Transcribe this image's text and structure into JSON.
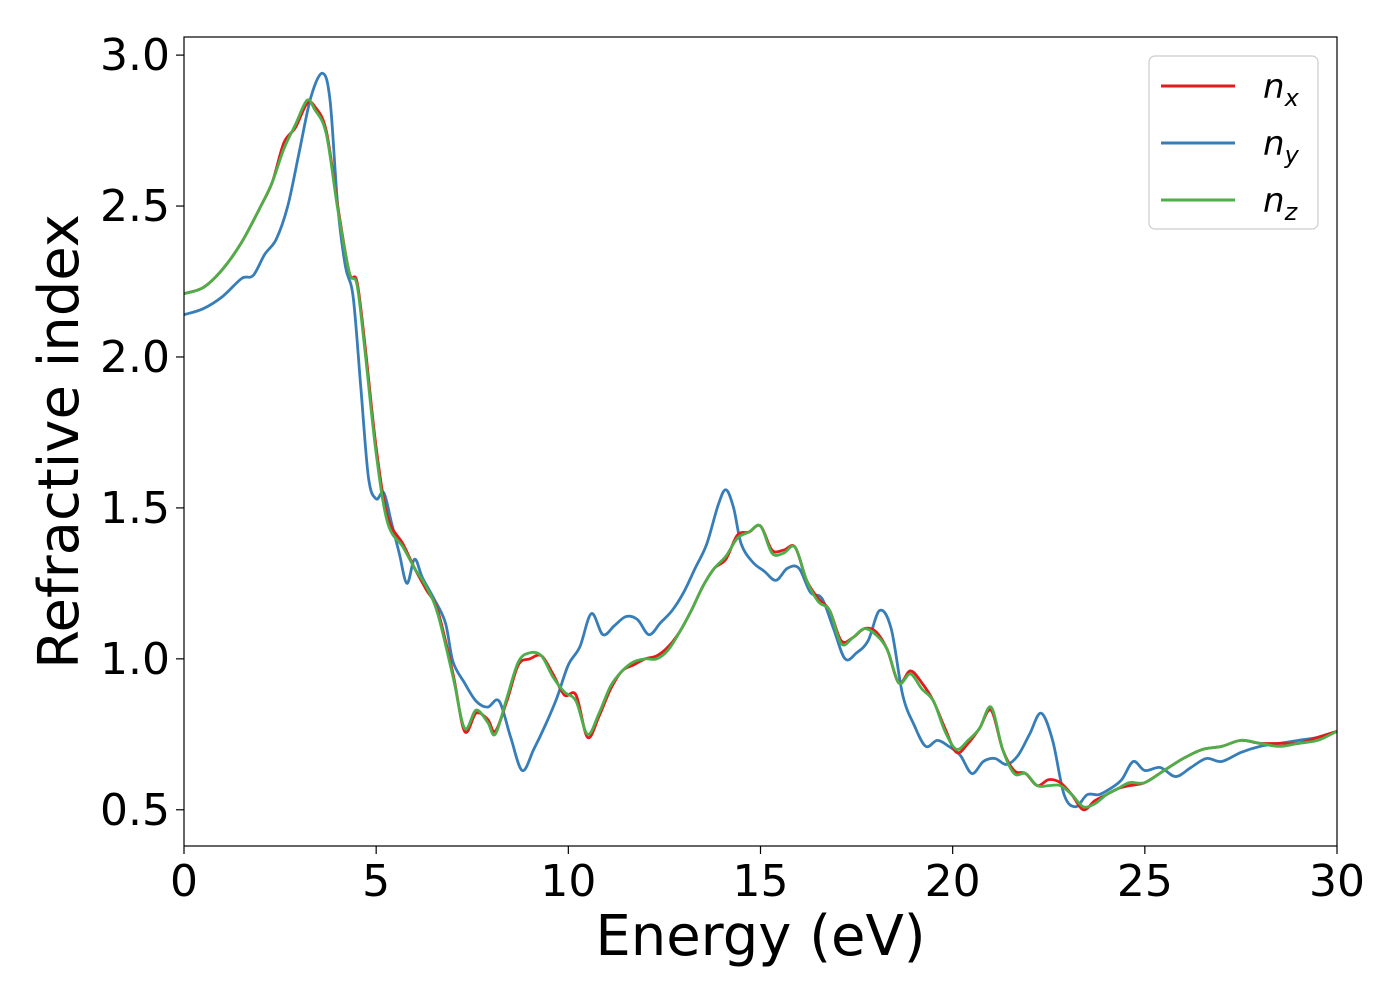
{
  "chart_data": {
    "type": "line",
    "xlabel": "Energy (eV)",
    "ylabel": "Refractive index",
    "xlim": [
      0,
      30
    ],
    "ylim": [
      0.38,
      3.06
    ],
    "xticks": [
      0,
      5,
      10,
      15,
      20,
      25,
      30
    ],
    "yticks": [
      0.5,
      1.0,
      1.5,
      2.0,
      2.5,
      3.0
    ],
    "xtick_labels": [
      "0",
      "5",
      "10",
      "15",
      "20",
      "25",
      "30"
    ],
    "ytick_labels": [
      "0.5",
      "1.0",
      "1.5",
      "2.0",
      "2.5",
      "3.0"
    ],
    "grid": false,
    "legend_position": "top-right",
    "series": [
      {
        "name": "n_x",
        "label_main": "n",
        "label_sub": "x",
        "color": "#e41a1c",
        "x": [
          0,
          0.5,
          1,
          1.5,
          2,
          2.3,
          2.6,
          2.9,
          3.2,
          3.4,
          3.7,
          4.0,
          4.3,
          4.5,
          4.7,
          5.0,
          5.3,
          5.7,
          6.0,
          6.3,
          6.6,
          7.0,
          7.3,
          7.6,
          7.9,
          8.1,
          8.4,
          8.7,
          9.0,
          9.3,
          9.6,
          9.9,
          10.2,
          10.5,
          10.8,
          11.1,
          11.4,
          11.7,
          12.0,
          12.3,
          12.6,
          12.9,
          13.2,
          13.5,
          13.8,
          14.1,
          14.4,
          14.7,
          15.0,
          15.3,
          15.6,
          15.9,
          16.2,
          16.5,
          16.8,
          17.1,
          17.4,
          17.7,
          18.0,
          18.3,
          18.6,
          18.9,
          19.2,
          19.5,
          19.8,
          20.1,
          20.4,
          20.7,
          21.0,
          21.3,
          21.6,
          21.9,
          22.2,
          22.5,
          22.8,
          23.1,
          23.4,
          23.7,
          24.0,
          24.3,
          24.6,
          25.0,
          25.5,
          26.0,
          26.5,
          27.0,
          27.5,
          28.0,
          28.5,
          29.0,
          29.5,
          30.0
        ],
        "y": [
          2.21,
          2.23,
          2.29,
          2.38,
          2.5,
          2.58,
          2.71,
          2.76,
          2.84,
          2.83,
          2.75,
          2.5,
          2.28,
          2.25,
          2.05,
          1.7,
          1.47,
          1.38,
          1.3,
          1.23,
          1.16,
          0.95,
          0.76,
          0.82,
          0.8,
          0.76,
          0.86,
          0.98,
          1.0,
          1.01,
          0.95,
          0.88,
          0.88,
          0.74,
          0.81,
          0.9,
          0.96,
          0.98,
          1.0,
          1.01,
          1.04,
          1.09,
          1.16,
          1.24,
          1.3,
          1.33,
          1.41,
          1.42,
          1.44,
          1.36,
          1.36,
          1.37,
          1.26,
          1.2,
          1.16,
          1.06,
          1.07,
          1.1,
          1.09,
          1.03,
          0.92,
          0.96,
          0.92,
          0.86,
          0.77,
          0.69,
          0.72,
          0.77,
          0.83,
          0.7,
          0.63,
          0.62,
          0.58,
          0.6,
          0.59,
          0.55,
          0.5,
          0.53,
          0.55,
          0.57,
          0.58,
          0.59,
          0.63,
          0.67,
          0.7,
          0.71,
          0.73,
          0.72,
          0.72,
          0.72,
          0.74,
          0.76
        ]
      },
      {
        "name": "n_y",
        "label_main": "n",
        "label_sub": "y",
        "color": "#377eb8",
        "x": [
          0,
          0.5,
          1,
          1.5,
          1.8,
          2.1,
          2.4,
          2.7,
          3.0,
          3.3,
          3.6,
          3.8,
          4.0,
          4.2,
          4.4,
          4.6,
          4.8,
          5.0,
          5.2,
          5.4,
          5.6,
          5.8,
          6.0,
          6.2,
          6.5,
          6.8,
          7.0,
          7.3,
          7.6,
          7.9,
          8.2,
          8.5,
          8.8,
          9.1,
          9.4,
          9.7,
          10.0,
          10.3,
          10.6,
          10.9,
          11.2,
          11.5,
          11.8,
          12.1,
          12.4,
          12.7,
          13.0,
          13.3,
          13.6,
          13.9,
          14.1,
          14.3,
          14.5,
          14.8,
          15.1,
          15.4,
          15.7,
          16.0,
          16.3,
          16.6,
          16.9,
          17.2,
          17.5,
          17.8,
          18.1,
          18.4,
          18.7,
          19.0,
          19.3,
          19.6,
          19.9,
          20.2,
          20.5,
          20.8,
          21.1,
          21.4,
          21.7,
          22.0,
          22.3,
          22.6,
          22.9,
          23.2,
          23.5,
          23.8,
          24.1,
          24.4,
          24.7,
          25.0,
          25.4,
          25.8,
          26.2,
          26.6,
          27.0,
          27.5,
          28.0,
          28.5,
          29.0,
          29.5,
          30.0
        ],
        "y": [
          2.14,
          2.16,
          2.2,
          2.26,
          2.27,
          2.34,
          2.39,
          2.5,
          2.68,
          2.86,
          2.94,
          2.85,
          2.5,
          2.3,
          2.2,
          1.9,
          1.6,
          1.53,
          1.55,
          1.45,
          1.35,
          1.25,
          1.33,
          1.27,
          1.2,
          1.12,
          0.99,
          0.92,
          0.86,
          0.84,
          0.86,
          0.74,
          0.63,
          0.7,
          0.78,
          0.87,
          0.98,
          1.04,
          1.15,
          1.08,
          1.11,
          1.14,
          1.13,
          1.08,
          1.12,
          1.16,
          1.22,
          1.3,
          1.38,
          1.51,
          1.56,
          1.5,
          1.38,
          1.32,
          1.29,
          1.26,
          1.3,
          1.3,
          1.22,
          1.2,
          1.1,
          1.0,
          1.02,
          1.06,
          1.16,
          1.1,
          0.88,
          0.78,
          0.71,
          0.73,
          0.71,
          0.68,
          0.62,
          0.66,
          0.67,
          0.65,
          0.68,
          0.75,
          0.82,
          0.73,
          0.55,
          0.51,
          0.55,
          0.55,
          0.57,
          0.6,
          0.66,
          0.63,
          0.64,
          0.61,
          0.64,
          0.67,
          0.66,
          0.69,
          0.71,
          0.72,
          0.73,
          0.74,
          0.76
        ]
      },
      {
        "name": "n_z",
        "label_main": "n",
        "label_sub": "z",
        "color": "#4daf4a",
        "x": [
          0,
          0.5,
          1,
          1.5,
          2,
          2.3,
          2.6,
          2.9,
          3.2,
          3.4,
          3.7,
          4.0,
          4.3,
          4.5,
          4.7,
          5.0,
          5.3,
          5.7,
          6.0,
          6.3,
          6.6,
          7.0,
          7.3,
          7.6,
          7.9,
          8.1,
          8.4,
          8.7,
          9.0,
          9.3,
          9.6,
          9.9,
          10.2,
          10.5,
          10.8,
          11.1,
          11.4,
          11.7,
          12.0,
          12.3,
          12.6,
          12.9,
          13.2,
          13.5,
          13.8,
          14.1,
          14.4,
          14.7,
          15.0,
          15.3,
          15.6,
          15.9,
          16.2,
          16.5,
          16.8,
          17.1,
          17.4,
          17.7,
          18.0,
          18.3,
          18.6,
          18.9,
          19.2,
          19.5,
          19.8,
          20.1,
          20.4,
          20.7,
          21.0,
          21.3,
          21.6,
          21.9,
          22.2,
          22.5,
          22.8,
          23.1,
          23.4,
          23.7,
          24.0,
          24.3,
          24.6,
          25.0,
          25.5,
          26.0,
          26.5,
          27.0,
          27.5,
          28.0,
          28.5,
          29.0,
          29.5,
          30.0
        ],
        "y": [
          2.21,
          2.23,
          2.29,
          2.38,
          2.5,
          2.58,
          2.69,
          2.77,
          2.85,
          2.82,
          2.74,
          2.49,
          2.28,
          2.24,
          2.03,
          1.68,
          1.45,
          1.37,
          1.3,
          1.24,
          1.15,
          0.94,
          0.77,
          0.83,
          0.79,
          0.75,
          0.87,
          0.99,
          1.02,
          1.01,
          0.94,
          0.89,
          0.86,
          0.75,
          0.82,
          0.91,
          0.96,
          0.99,
          1.0,
          1.0,
          1.03,
          1.09,
          1.16,
          1.24,
          1.3,
          1.34,
          1.4,
          1.42,
          1.44,
          1.35,
          1.35,
          1.37,
          1.26,
          1.19,
          1.16,
          1.05,
          1.07,
          1.1,
          1.08,
          1.03,
          0.92,
          0.95,
          0.9,
          0.86,
          0.76,
          0.7,
          0.73,
          0.77,
          0.84,
          0.7,
          0.62,
          0.62,
          0.58,
          0.58,
          0.58,
          0.55,
          0.51,
          0.52,
          0.55,
          0.57,
          0.59,
          0.59,
          0.63,
          0.67,
          0.7,
          0.71,
          0.73,
          0.72,
          0.71,
          0.72,
          0.73,
          0.76
        ]
      }
    ]
  }
}
